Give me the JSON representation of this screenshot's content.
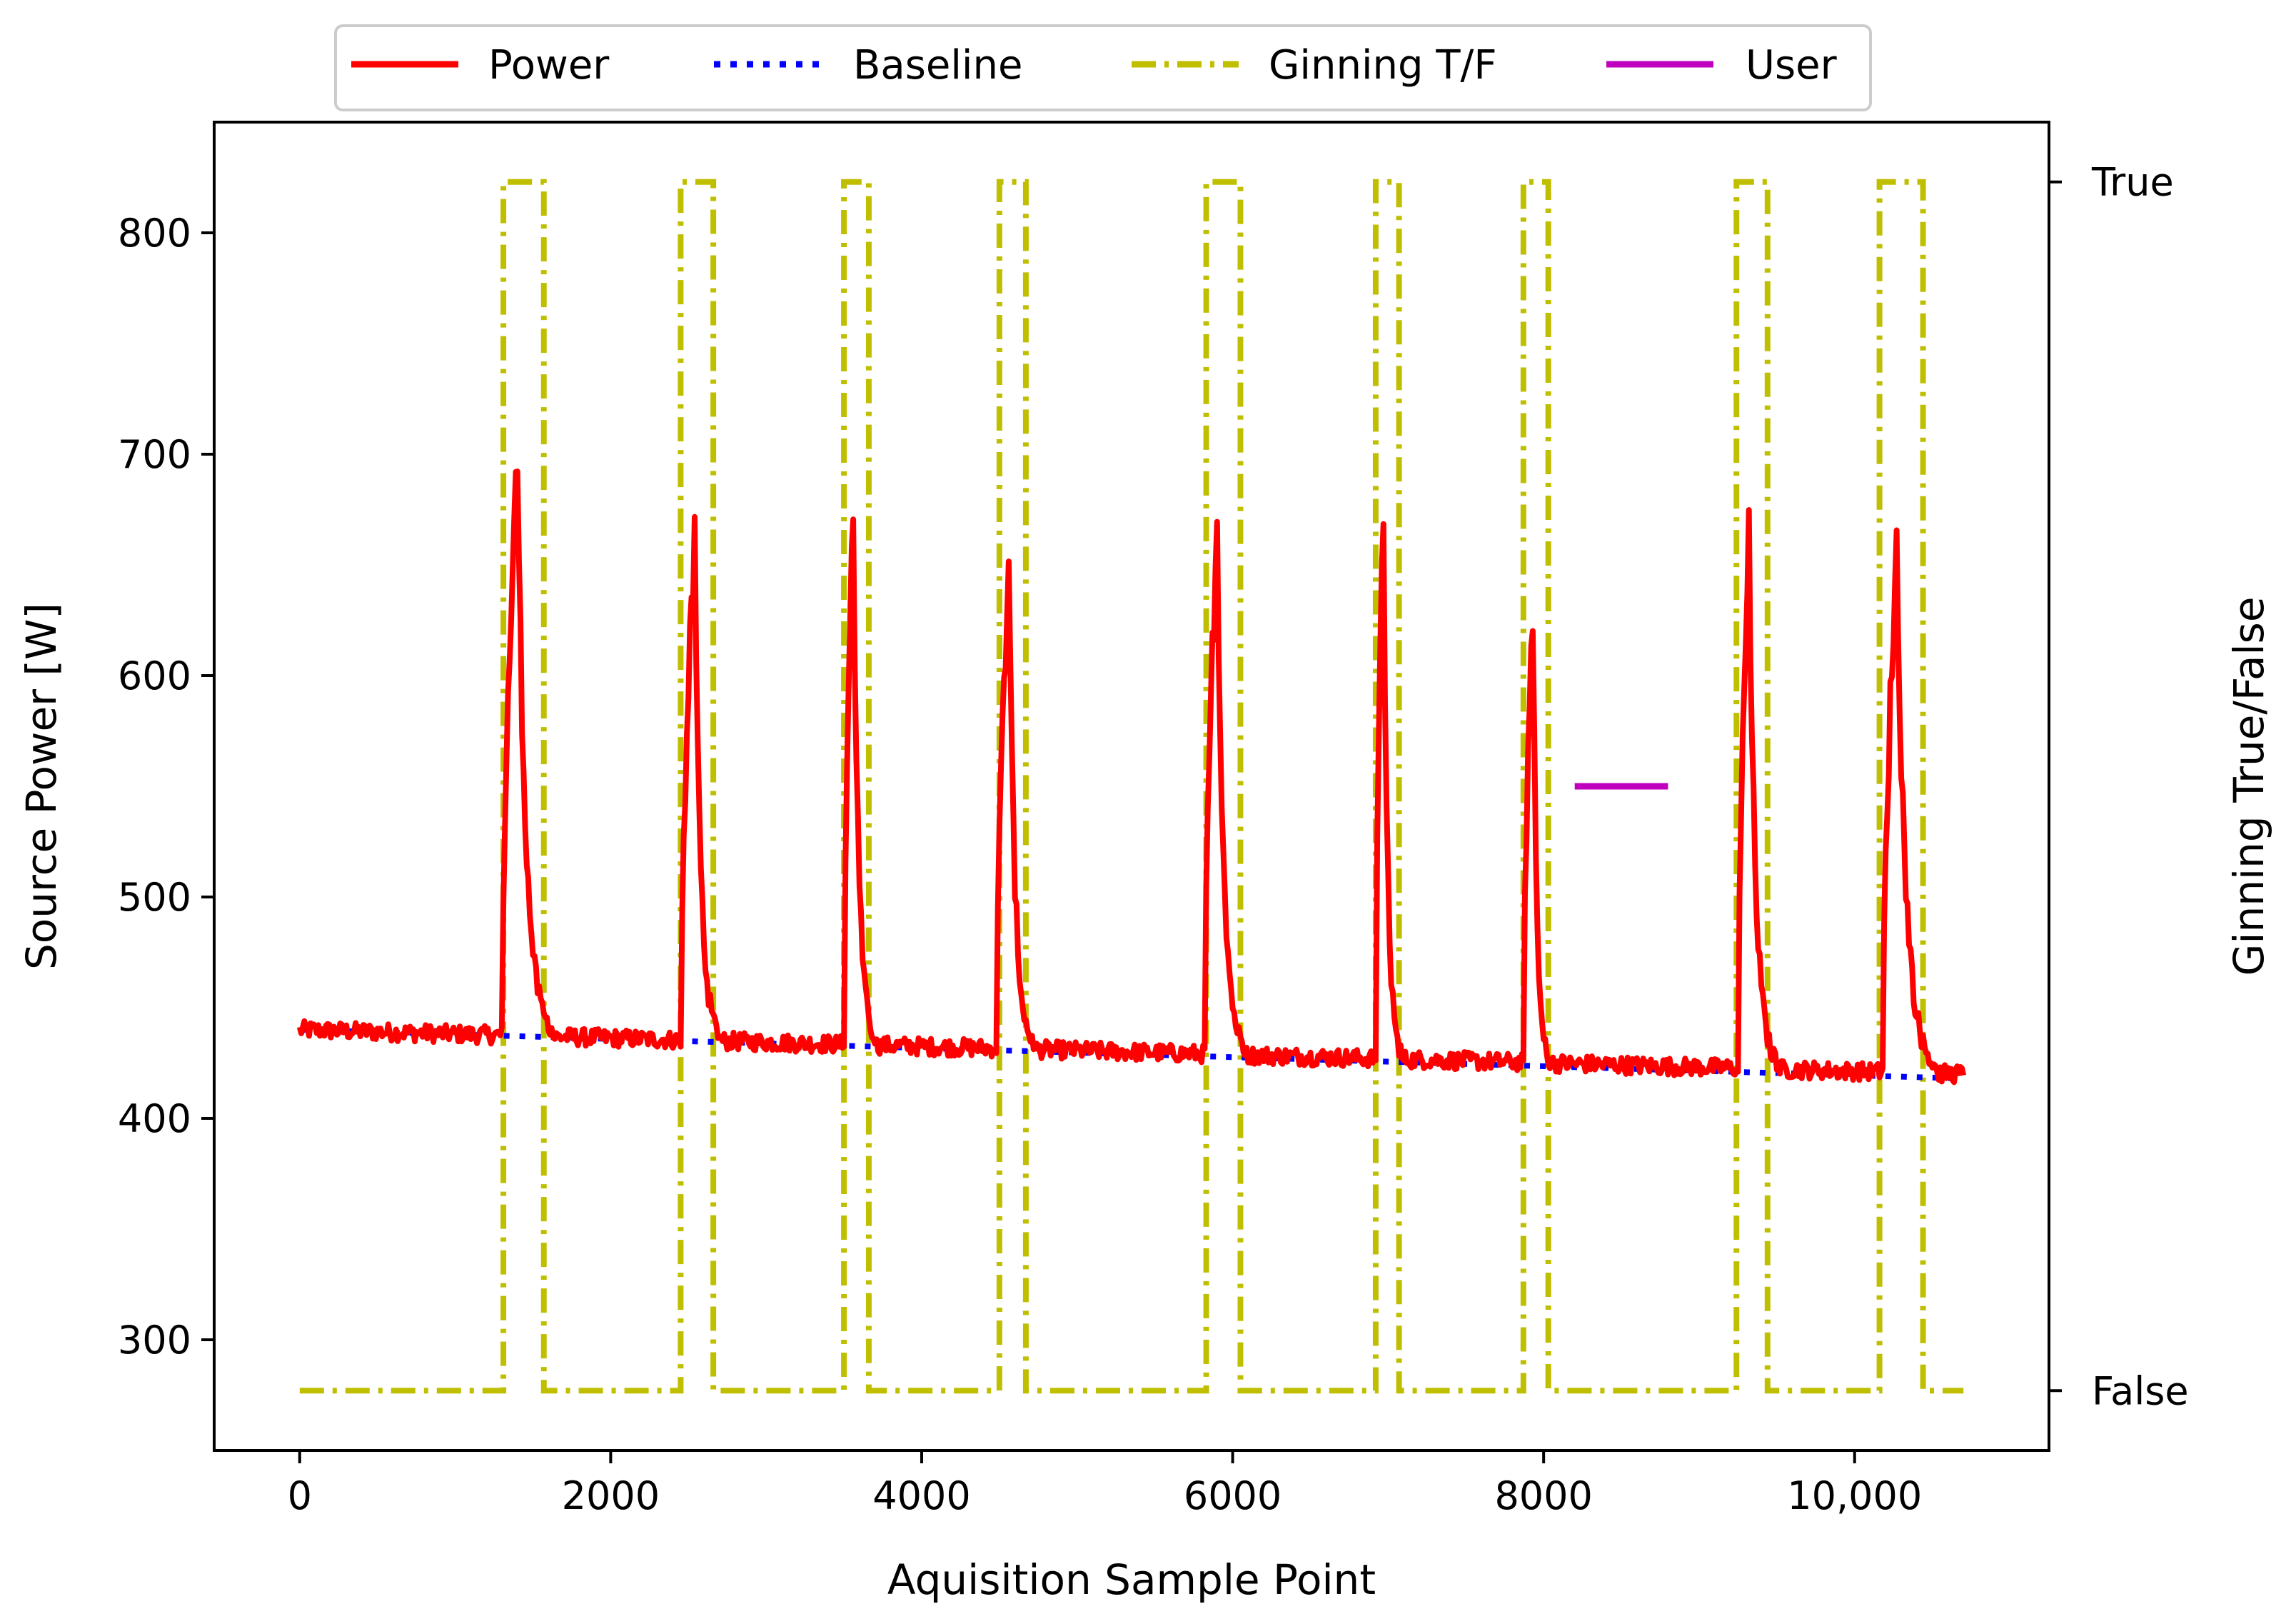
{
  "chart_data": {
    "type": "line",
    "xlabel": "Aquisition Sample Point",
    "ylabel": "Source Power [W]",
    "y2label": "Ginning True/False",
    "xlim": [
      -550,
      11250
    ],
    "ylim": [
      250,
      850
    ],
    "x_ticks": [
      0,
      2000,
      4000,
      6000,
      8000,
      10000
    ],
    "x_tick_labels": [
      "0",
      "2000",
      "4000",
      "6000",
      "8000",
      "10,000"
    ],
    "y_ticks": [
      300,
      400,
      500,
      600,
      700,
      800
    ],
    "y_tick_labels": [
      "300",
      "400",
      "500",
      "600",
      "700",
      "800"
    ],
    "y2_tick_labels": [
      "True",
      "False"
    ],
    "legend": {
      "position": "top-center",
      "entries": [
        {
          "label": "Power",
          "color": "#ff0000",
          "style": "solid"
        },
        {
          "label": "Baseline",
          "color": "#0000ff",
          "style": "dotted"
        },
        {
          "label": "Ginning T/F",
          "color": "#bfbf00",
          "style": "dashdot"
        },
        {
          "label": "User",
          "color": "#bf00bf",
          "style": "solid"
        }
      ]
    },
    "series": [
      {
        "name": "Power",
        "color": "#ff0000",
        "noise": 4,
        "baseline": {
          "start": 440,
          "end": 420,
          "x_end": 10700
        },
        "peaks": [
          {
            "start": 1300,
            "peak": 1400,
            "end": 1620,
            "value": 698
          },
          {
            "start": 2450,
            "peak": 2540,
            "end": 2700,
            "value": 658
          },
          {
            "start": 3500,
            "peak": 3560,
            "end": 3700,
            "value": 675
          },
          {
            "start": 4480,
            "peak": 4560,
            "end": 4720,
            "value": 648
          },
          {
            "start": 5820,
            "peak": 5900,
            "end": 6080,
            "value": 668
          },
          {
            "start": 6920,
            "peak": 6970,
            "end": 7080,
            "value": 678
          },
          {
            "start": 7870,
            "peak": 7930,
            "end": 8030,
            "value": 635
          },
          {
            "start": 9250,
            "peak": 9320,
            "end": 9500,
            "value": 660
          },
          {
            "start": 10180,
            "peak": 10270,
            "end": 10520,
            "value": 657
          }
        ]
      },
      {
        "name": "Baseline",
        "color": "#0000ff",
        "x": [
          0,
          10700
        ],
        "y": [
          440,
          418
        ]
      },
      {
        "name": "Ginning T/F",
        "color": "#bfbf00",
        "axis": "secondary",
        "false_value": 277,
        "true_value": 823,
        "x_range": [
          0,
          10700
        ],
        "intervals": [
          [
            1310,
            1570
          ],
          [
            2450,
            2660
          ],
          [
            3500,
            3660
          ],
          [
            4500,
            4670
          ],
          [
            5830,
            6050
          ],
          [
            6920,
            7070
          ],
          [
            7870,
            8030
          ],
          [
            9240,
            9440
          ],
          [
            10160,
            10440
          ]
        ]
      },
      {
        "name": "User",
        "color": "#bf00bf",
        "x": [
          8200,
          8800
        ],
        "y": [
          550,
          550
        ]
      }
    ]
  }
}
